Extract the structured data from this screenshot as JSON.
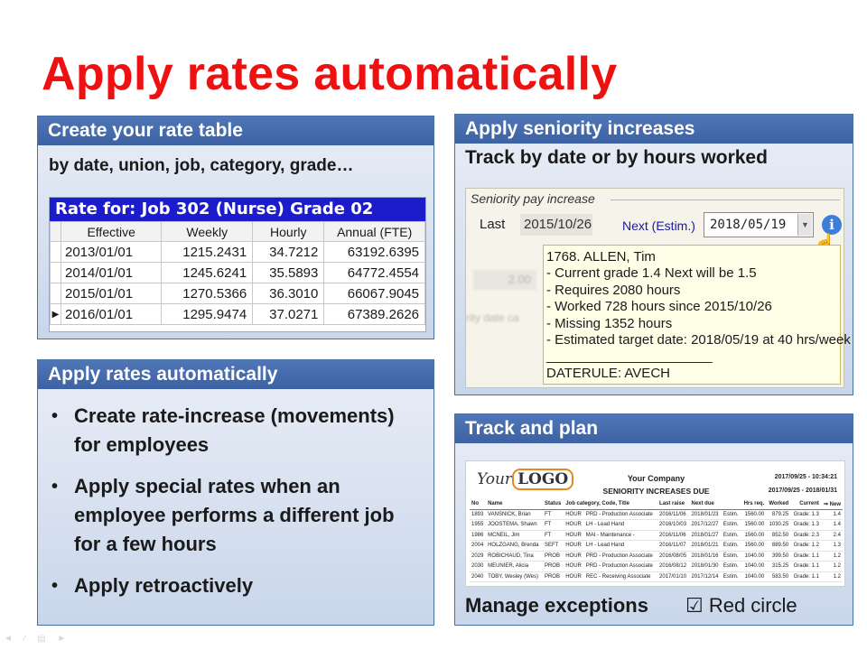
{
  "slide": {
    "title": "Apply rates automatically",
    "nav_glyphs": "◄ ∕ ▤ ►"
  },
  "colors": {
    "title_red": "#ee1111",
    "panel_header_blue": "#3d62a3",
    "rate_header_blue": "#1c1ccc",
    "tooltip_yellow": "#ffffe8"
  },
  "rate_panel": {
    "header": "Create your rate table",
    "subtitle": "by date, union, job, category, grade…",
    "table_title": "Rate for: Job 302 (Nurse) Grade 02",
    "columns": [
      "Effective",
      "Weekly",
      "Hourly",
      "Annual (FTE)"
    ],
    "row_marker": "▶",
    "rows": [
      [
        "2013/01/01",
        "1215.2431",
        "34.7212",
        "63192.6395"
      ],
      [
        "2014/01/01",
        "1245.6241",
        "35.5893",
        "64772.4554"
      ],
      [
        "2015/01/01",
        "1270.5366",
        "36.3010",
        "66067.9045"
      ],
      [
        "2016/01/01",
        "1295.9474",
        "37.0271",
        "67389.2626"
      ]
    ]
  },
  "auto_panel": {
    "header": "Apply rates automatically",
    "bullet_glyph": "•",
    "bullets": [
      "Create rate-increase (movements) for employees",
      "Apply special rates when an employee performs a different job for a few hours",
      "Apply retroactively"
    ]
  },
  "seniority_panel": {
    "header": "Apply seniority increases",
    "subtitle": "Track by date or by hours worked",
    "group_label": "Seniority pay increase",
    "last_label": "Last",
    "last_value": "2015/10/26",
    "next_label": "Next (Estim.)",
    "next_value": "2018/05/19",
    "dropdown_icon": "▼",
    "info_icon": "i",
    "hand_icon": "☝",
    "ghost_value": "2.00",
    "ghost_label": "rity date ca",
    "tooltip_lines": [
      "1768. ALLEN, Tim",
      "- Current grade 1.4   Next will be 1.5",
      "- Requires 2080 hours",
      "- Worked 728 hours since 2015/10/26",
      "- Missing 1352 hours",
      "- Estimated target date: 2018/05/19 at 40 hrs/week",
      "______________________",
      "DATERULE: AVECH"
    ]
  },
  "track_panel": {
    "header": "Track and plan",
    "logo_text": "Your",
    "logo_mark": "LOGO",
    "company": "Your Company",
    "report_title": "SENIORITY INCREASES DUE",
    "report_datetime": "2017/09/25 - 10:34:21",
    "report_range": "2017/09/25   -   2018/01/31",
    "columns": [
      "No",
      "Name",
      "Status",
      "Job category, Code, Title",
      "Last raise",
      "Next due",
      "",
      "Hrs req.",
      "Worked",
      "Current",
      "⇒ New"
    ],
    "rows": [
      [
        "1893",
        "VANSNICK, Brian",
        "FT",
        "HOUR",
        "PRD - Production Associate",
        "2016/11/06",
        "2018/01/23",
        "Estim.",
        "1560.00",
        "879.25",
        "Grade: 1.3",
        "1.4"
      ],
      [
        "1955",
        "JOOSTEMA, Shawn",
        "FT",
        "HOUR",
        "LH - Lead Hand",
        "2016/10/03",
        "2017/12/27",
        "Estim.",
        "1560.00",
        "1030.25",
        "Grade: 1.3",
        "1.4"
      ],
      [
        "1986",
        "MCNEIL, Jim",
        "FT",
        "HOUR",
        "MAI - Maintenance -",
        "2016/11/06",
        "2018/01/27",
        "Estim.",
        "1560.00",
        "852.50",
        "Grade: 2.3",
        "2.4"
      ],
      [
        "2004",
        "HOLZGANG, Brenda",
        "SEFT",
        "HOUR",
        "LH - Lead Hand",
        "2016/11/07",
        "2018/01/21",
        "Estim.",
        "1560.00",
        "889.50",
        "Grade: 1.2",
        "1.3"
      ],
      [
        "2029",
        "ROBICHAUD, Tina",
        "PROB",
        "HOUR",
        "PRD - Production Associate",
        "2016/08/05",
        "2018/01/16",
        "Estim.",
        "1040.00",
        "399.50",
        "Grade: 1.1",
        "1.2"
      ],
      [
        "2030",
        "MEUNIER, Alicia",
        "PROB",
        "HOUR",
        "PRD - Production Associate",
        "2016/08/12",
        "2018/01/30",
        "Estim.",
        "1040.00",
        "315.25",
        "Grade: 1.1",
        "1.2"
      ],
      [
        "2040",
        "TOBY, Wesley (Wes)",
        "PROB",
        "HOUR",
        "REC - Receiving Associate",
        "2017/01/10",
        "2017/12/14",
        "Estim.",
        "1040.00",
        "583.50",
        "Grade: 1.1",
        "1.2"
      ]
    ],
    "footer": "Manage exceptions",
    "check_label": "☑ Red circle"
  }
}
